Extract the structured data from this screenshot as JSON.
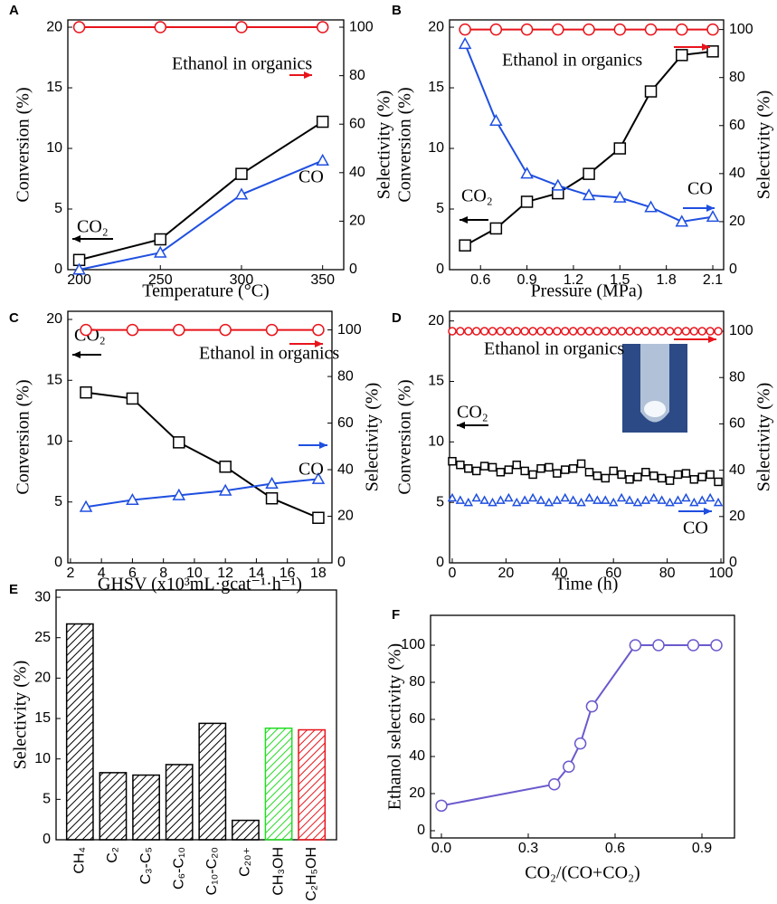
{
  "chart_data": [
    {
      "type": "line",
      "label": "A",
      "lines": true,
      "x_label": "Temperature (°C)",
      "y_label": "Conversion (%)",
      "y2_label": "Selectivity (%)",
      "x": [
        200,
        250,
        300,
        350
      ],
      "xlim": [
        193,
        363
      ],
      "xticks": [
        200,
        250,
        300,
        350
      ],
      "ylim": [
        0,
        20.6
      ],
      "yticks": [
        0,
        5,
        10,
        15,
        20
      ],
      "y2lim": [
        0,
        103
      ],
      "y2ticks": [
        0,
        20,
        40,
        60,
        80,
        100
      ],
      "series": [
        {
          "name": "CO₂",
          "color": "#000000",
          "marker": "square",
          "axis": "y",
          "values": [
            0.8,
            2.5,
            7.9,
            12.2
          ]
        },
        {
          "name": "CO",
          "color": "#1f4fe0",
          "marker": "triangle",
          "axis": "y2",
          "values": [
            0,
            7,
            31,
            45
          ]
        },
        {
          "name": "Ethanol in organics",
          "color": "#e8141b",
          "marker": "circle",
          "axis": "y2",
          "values": [
            100,
            100,
            100,
            100
          ]
        }
      ]
    },
    {
      "type": "line",
      "label": "B",
      "lines": true,
      "x_label": "Pressure (MPa)",
      "y_label": "Conversion (%)",
      "y2_label": "Selectivity (%)",
      "x": [
        0.5,
        0.7,
        0.9,
        1.1,
        1.3,
        1.5,
        1.7,
        1.9,
        2.1
      ],
      "xlim": [
        0.4,
        2.17
      ],
      "xticks": [
        0.6,
        0.9,
        1.2,
        1.5,
        1.8,
        2.1
      ],
      "ylim": [
        0,
        20.6
      ],
      "yticks": [
        0,
        5,
        10,
        15,
        20
      ],
      "y2lim": [
        0,
        104
      ],
      "y2ticks": [
        0,
        20,
        40,
        60,
        80,
        100
      ],
      "series": [
        {
          "name": "CO₂",
          "color": "#000000",
          "marker": "square",
          "axis": "y",
          "values": [
            2.0,
            3.4,
            5.6,
            6.3,
            7.9,
            10.0,
            14.7,
            17.7,
            18.0
          ]
        },
        {
          "name": "CO",
          "color": "#1f4fe0",
          "marker": "triangle",
          "axis": "y2",
          "values": [
            94,
            62,
            40,
            35,
            31,
            30,
            26,
            20,
            22
          ]
        },
        {
          "name": "Ethanol in organics",
          "color": "#e8141b",
          "marker": "circle",
          "axis": "y2",
          "values": [
            100,
            100,
            100,
            100,
            100,
            100,
            100,
            100,
            100
          ]
        }
      ]
    },
    {
      "type": "line",
      "label": "C",
      "lines": true,
      "x_label": "GHSV (x10³mL·gcat⁻¹·h⁻¹)",
      "y_label": "Conversion (%)",
      "y2_label": "Selectivity (%)",
      "x": [
        3,
        6,
        9,
        12,
        15,
        18
      ],
      "xlim": [
        1.83,
        18.88
      ],
      "xticks": [
        2,
        4,
        6,
        8,
        10,
        12,
        14,
        16,
        18
      ],
      "ylim": [
        0,
        20.67
      ],
      "yticks": [
        0,
        5,
        10,
        15,
        20
      ],
      "y2lim": [
        0,
        108
      ],
      "y2ticks": [
        0,
        20,
        40,
        60,
        80,
        100
      ],
      "series": [
        {
          "name": "CO₂",
          "color": "#000000",
          "marker": "square",
          "axis": "y",
          "values": [
            14.0,
            13.5,
            9.9,
            7.9,
            5.3,
            3.7
          ]
        },
        {
          "name": "CO",
          "color": "#1f4fe0",
          "marker": "triangle",
          "axis": "y2",
          "values": [
            24,
            27,
            29,
            31,
            34,
            36
          ]
        },
        {
          "name": "Ethanol in organics",
          "color": "#e8141b",
          "marker": "circle",
          "axis": "y2",
          "values": [
            100,
            100,
            100,
            100,
            100,
            100
          ]
        }
      ]
    },
    {
      "type": "line",
      "label": "D",
      "lines": false,
      "x_label": "Time (h)",
      "y_label": "Conversion (%)",
      "y2_label": "Selectivity (%)",
      "x": [
        0,
        3,
        6,
        9,
        12,
        15,
        18,
        21,
        24,
        27,
        30,
        33,
        36,
        39,
        42,
        45,
        48,
        51,
        54,
        57,
        60,
        63,
        66,
        69,
        72,
        75,
        78,
        81,
        84,
        87,
        90,
        93,
        96,
        99
      ],
      "xlim": [
        -1,
        101
      ],
      "xticks": [
        0,
        20,
        40,
        60,
        80,
        100
      ],
      "ylim": [
        0,
        20.8
      ],
      "yticks": [
        0,
        5,
        10,
        15,
        20
      ],
      "y2lim": [
        0,
        108.6
      ],
      "y2ticks": [
        0,
        20,
        40,
        60,
        80,
        100
      ],
      "series": [
        {
          "name": "CO₂",
          "color": "#000000",
          "marker": "square",
          "axis": "y",
          "values": [
            8.4,
            8.1,
            7.8,
            7.6,
            8.0,
            7.9,
            7.5,
            7.7,
            8.1,
            7.6,
            7.3,
            7.8,
            7.9,
            7.4,
            7.7,
            7.8,
            8.2,
            7.5,
            7.2,
            7.0,
            7.6,
            7.3,
            6.9,
            7.1,
            7.5,
            7.2,
            7.0,
            6.8,
            7.3,
            7.4,
            6.9,
            7.1,
            7.3,
            6.7
          ]
        },
        {
          "name": "CO",
          "color": "#1f4fe0",
          "marker": "triangle",
          "axis": "y2",
          "values": [
            28,
            27,
            26,
            28,
            27,
            26,
            27,
            28,
            26,
            27,
            28,
            27,
            26,
            27,
            28,
            27,
            26,
            28,
            27,
            27,
            26,
            28,
            27,
            26,
            27,
            28,
            27,
            26,
            27,
            28,
            26,
            27,
            28,
            26
          ]
        },
        {
          "name": "Ethanol in organics",
          "color": "#e8141b",
          "marker": "circle",
          "axis": "y2",
          "values": [
            100,
            100,
            100,
            100,
            100,
            100,
            100,
            100,
            100,
            100,
            100,
            100,
            100,
            100,
            100,
            100,
            100,
            100,
            100,
            100,
            100,
            100,
            100,
            100,
            100,
            100,
            100,
            100,
            100,
            100,
            100,
            100,
            100,
            100
          ]
        }
      ]
    },
    {
      "type": "bar",
      "label": "E",
      "y_label": "Selectivity (%)",
      "categories": [
        "CH₄",
        "C₂",
        "C₃-C₅",
        "C₆-C₁₀",
        "C₁₀-C₂₀",
        "C₂₀₊",
        "CH₃OH",
        "C₂H₅OH"
      ],
      "values": [
        26.7,
        8.3,
        8.0,
        9.3,
        14.4,
        2.4,
        13.8,
        13.6
      ],
      "colors": [
        "#000000",
        "#000000",
        "#000000",
        "#000000",
        "#000000",
        "#000000",
        "#22dd22",
        "#e8141b"
      ],
      "ylim": [
        0,
        30.9
      ],
      "yticks": [
        0,
        5,
        10,
        15,
        20,
        25,
        30
      ]
    },
    {
      "type": "line",
      "label": "F",
      "lines": true,
      "x_label": "CO₂/(CO+CO₂)",
      "y_label": "Ethanol selectivity (%)",
      "x": [
        0,
        0.39,
        0.44,
        0.48,
        0.52,
        0.67,
        0.75,
        0.87,
        0.95
      ],
      "xlim": [
        -0.0375,
        1.0125
      ],
      "xticks": [
        {
          "value": 0,
          "label": "0.0"
        },
        0.3,
        0.6,
        0.9
      ],
      "ylim": [
        -3.9,
        116.1
      ],
      "yticks": [
        0,
        20,
        40,
        60,
        80,
        100
      ],
      "series": [
        {
          "color": "#6a5acd",
          "marker": "circle",
          "axis": "y",
          "values": [
            13.5,
            25,
            34.5,
            47,
            67,
            100,
            100,
            100,
            100
          ]
        }
      ]
    }
  ]
}
